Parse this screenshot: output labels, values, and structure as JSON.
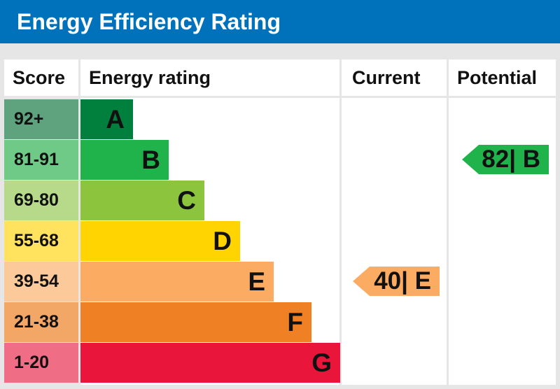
{
  "title": "Energy Efficiency Rating",
  "headers": {
    "score": "Score",
    "energy_rating": "Energy rating",
    "current": "Current",
    "potential": "Potential"
  },
  "chart_data": {
    "type": "bar",
    "title": "Energy Efficiency Rating",
    "bands": [
      {
        "letter": "A",
        "range": "92+",
        "band_color": "#007f3d",
        "score_color": "#5fa37e"
      },
      {
        "letter": "B",
        "range": "81-91",
        "band_color": "#20b24b",
        "score_color": "#6fca87"
      },
      {
        "letter": "C",
        "range": "69-80",
        "band_color": "#8cc43e",
        "score_color": "#b7d98a"
      },
      {
        "letter": "D",
        "range": "55-68",
        "band_color": "#ffd400",
        "score_color": "#ffe25e"
      },
      {
        "letter": "E",
        "range": "39-54",
        "band_color": "#fcab62",
        "score_color": "#fcc99a"
      },
      {
        "letter": "F",
        "range": "21-38",
        "band_color": "#ef8023",
        "score_color": "#f3a766"
      },
      {
        "letter": "G",
        "range": "1-20",
        "band_color": "#e9153b",
        "score_color": "#ef6e85"
      }
    ],
    "current": {
      "value": 40,
      "letter": "E",
      "label": "40| E",
      "color": "#fcab62"
    },
    "potential": {
      "value": 82,
      "letter": "B",
      "label": "82| B",
      "color": "#20b24b"
    }
  }
}
